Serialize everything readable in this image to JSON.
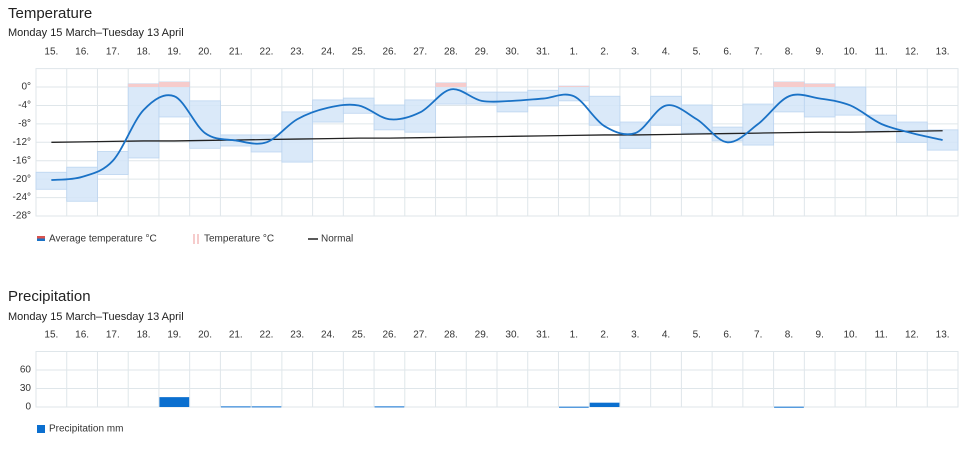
{
  "chart_data": [
    {
      "type": "range_line",
      "title": "Temperature",
      "subtitle": "Monday 15 March–Tuesday 13 April",
      "categories": [
        "15.",
        "16.",
        "17.",
        "18.",
        "19.",
        "20.",
        "21.",
        "22.",
        "23.",
        "24.",
        "25.",
        "26.",
        "27.",
        "28.",
        "29.",
        "30.",
        "31.",
        "1.",
        "2.",
        "3.",
        "4.",
        "5.",
        "6.",
        "7.",
        "8.",
        "9.",
        "10.",
        "11.",
        "12.",
        "13."
      ],
      "ylim": [
        -28,
        4
      ],
      "yticks": [
        {
          "value": 0,
          "label": "0°"
        },
        {
          "value": -4,
          "label": "-4°"
        },
        {
          "value": -8,
          "label": "-8°"
        },
        {
          "value": -12,
          "label": "-12°"
        },
        {
          "value": -16,
          "label": "-16°"
        },
        {
          "value": -20,
          "label": "-20°"
        },
        {
          "value": -24,
          "label": "-24°"
        },
        {
          "value": -28,
          "label": "-28°"
        }
      ],
      "grid": true,
      "series": [
        {
          "name": "Average temperature °C",
          "color": "#1a72c6",
          "values": [
            -20.2,
            -19.5,
            -16,
            -5,
            -2,
            -10,
            -11.6,
            -12,
            -7,
            -4.5,
            -4,
            -7,
            -5.5,
            -0.5,
            -3,
            -3,
            -2.5,
            -2,
            -8.5,
            -10,
            -4,
            -7,
            -12,
            -8,
            -2,
            -2.5,
            -4,
            -8,
            -10,
            -11.5
          ]
        },
        {
          "name": "Temperature °C",
          "color": "#d3e5f8",
          "above_zero_color": "#f6cccc",
          "high": [
            -18.5,
            -17.4,
            -14,
            0.7,
            1.1,
            -3,
            -10.4,
            -10.4,
            -5.4,
            -2.8,
            -2.4,
            -3.9,
            -2.8,
            0.9,
            -1.1,
            -1.1,
            -0.7,
            0.2,
            -2,
            -7.6,
            -2,
            -3.9,
            -8.7,
            -3.7,
            1.1,
            0.7,
            0,
            -6.1,
            -7.6,
            -9.3
          ],
          "low": [
            -22.2,
            -24.8,
            -19,
            -15.4,
            -6.5,
            -13.3,
            -12.8,
            -14.1,
            -16.3,
            -7.6,
            -5.7,
            -9.3,
            -9.8,
            -3.7,
            -3.7,
            -5.4,
            -4.1,
            -3,
            -8.3,
            -13.3,
            -8.3,
            -10,
            -11.7,
            -12.6,
            -5.4,
            -6.5,
            -6.1,
            -9.6,
            -12,
            -13.7
          ]
        },
        {
          "name": "Normal",
          "color": "#222222",
          "values": [
            -12.0,
            -11.9,
            -11.8,
            -11.7,
            -11.7,
            -11.6,
            -11.5,
            -11.4,
            -11.3,
            -11.2,
            -11.1,
            -11.1,
            -11.0,
            -10.9,
            -10.8,
            -10.7,
            -10.6,
            -10.5,
            -10.4,
            -10.4,
            -10.3,
            -10.2,
            -10.1,
            -10.0,
            -9.9,
            -9.8,
            -9.8,
            -9.7,
            -9.6,
            -9.5
          ]
        }
      ]
    },
    {
      "type": "bar",
      "title": "Precipitation",
      "subtitle": "Monday 15 March–Tuesday 13 April",
      "categories": [
        "15.",
        "16.",
        "17.",
        "18.",
        "19.",
        "20.",
        "21.",
        "22.",
        "23.",
        "24.",
        "25.",
        "26.",
        "27.",
        "28.",
        "29.",
        "30.",
        "31.",
        "1.",
        "2.",
        "3.",
        "4.",
        "5.",
        "6.",
        "7.",
        "8.",
        "9.",
        "10.",
        "11.",
        "12.",
        "13."
      ],
      "ylim": [
        0,
        90
      ],
      "yticks": [
        0,
        30,
        60
      ],
      "grid": true,
      "series": [
        {
          "name": "Precipitation mm",
          "color": "#0b6fcf",
          "values": [
            0,
            0,
            0,
            0,
            16,
            0,
            1,
            1,
            0,
            0,
            0,
            1,
            0,
            0,
            0,
            0,
            0,
            0.5,
            7,
            0,
            0,
            0,
            0,
            0,
            0.5,
            0,
            0,
            0,
            0,
            0
          ]
        }
      ]
    }
  ]
}
